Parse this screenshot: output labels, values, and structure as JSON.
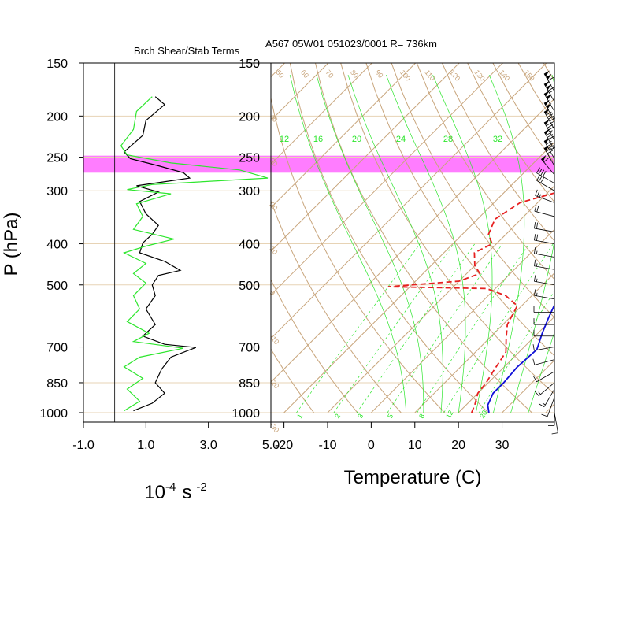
{
  "title_right": "A567 05W01 051023/0001 R= 736km",
  "title_left": "Brch Shear/Stab Terms",
  "y_axis_label": "P (hPa)",
  "pressure_ticks": [
    150,
    200,
    250,
    300,
    400,
    500,
    700,
    850,
    1000
  ],
  "highlight_pressure_range": [
    248,
    272
  ],
  "colors": {
    "brown": "#c8a57c",
    "green": "#2ee62e",
    "red": "#e62020",
    "blue": "#1010d8",
    "magenta": "#ff66ff",
    "wind": "#000000"
  },
  "chart_data": [
    {
      "type": "line",
      "title": "Brch Shear/Stab Terms",
      "xlabel": "10",
      "xlabel_sup1": "-4",
      "xlabel_unit": "s",
      "xlabel_sup2": "-2",
      "ylabel": "P (hPa)",
      "x_ticks": [
        "-1.0",
        "1.0",
        "3.0",
        "5.0"
      ],
      "xlim": [
        -1.0,
        5.0
      ],
      "ylim": [
        1000,
        150
      ],
      "series": [
        {
          "name": "shear term",
          "color": "black",
          "points": [
            [
              1.3,
              180
            ],
            [
              1.6,
              188
            ],
            [
              1.0,
              205
            ],
            [
              0.9,
              222
            ],
            [
              0.3,
              243
            ],
            [
              0.5,
              252
            ],
            [
              1.4,
              262
            ],
            [
              2.2,
              272
            ],
            [
              2.4,
              280
            ],
            [
              0.7,
              292
            ],
            [
              1.4,
              302
            ],
            [
              0.8,
              318
            ],
            [
              1.0,
              340
            ],
            [
              1.4,
              362
            ],
            [
              1.2,
              380
            ],
            [
              0.9,
              398
            ],
            [
              0.8,
              420
            ],
            [
              1.6,
              440
            ],
            [
              2.1,
              462
            ],
            [
              1.4,
              475
            ],
            [
              1.2,
              500
            ],
            [
              1.3,
              530
            ],
            [
              1.0,
              570
            ],
            [
              1.3,
              620
            ],
            [
              0.9,
              660
            ],
            [
              1.6,
              690
            ],
            [
              2.6,
              702
            ],
            [
              1.8,
              740
            ],
            [
              1.5,
              790
            ],
            [
              1.3,
              850
            ],
            [
              1.6,
              900
            ],
            [
              1.2,
              950
            ],
            [
              0.6,
              990
            ]
          ]
        },
        {
          "name": "stability term",
          "color": "green",
          "points": [
            [
              1.2,
              180
            ],
            [
              0.7,
              195
            ],
            [
              0.6,
              215
            ],
            [
              0.2,
              235
            ],
            [
              0.4,
              247
            ],
            [
              1.8,
              258
            ],
            [
              4.0,
              268
            ],
            [
              4.9,
              280
            ],
            [
              1.2,
              290
            ],
            [
              0.4,
              298
            ],
            [
              1.8,
              305
            ],
            [
              0.7,
              322
            ],
            [
              0.9,
              345
            ],
            [
              0.6,
              370
            ],
            [
              1.9,
              390
            ],
            [
              1.0,
              405
            ],
            [
              0.3,
              420
            ],
            [
              1.0,
              445
            ],
            [
              0.6,
              470
            ],
            [
              1.0,
              495
            ],
            [
              0.6,
              530
            ],
            [
              0.8,
              570
            ],
            [
              0.4,
              610
            ],
            [
              1.1,
              650
            ],
            [
              0.6,
              680
            ],
            [
              2.2,
              705
            ],
            [
              0.8,
              740
            ],
            [
              0.3,
              780
            ],
            [
              0.9,
              830
            ],
            [
              0.4,
              880
            ],
            [
              0.8,
              940
            ],
            [
              0.3,
              990
            ]
          ]
        }
      ],
      "zero_line": 0.0
    },
    {
      "type": "line",
      "title": "A567 05W01 051023/0001 R= 736km",
      "xlabel": "Temperature (C)",
      "ylabel": "P (hPa)",
      "x_ticks": [
        "-20",
        "-10",
        "0",
        "10",
        "20",
        "30"
      ],
      "xlim": [
        -23,
        42
      ],
      "ylim": [
        1000,
        150
      ],
      "isotherm_labels_top": [
        "50",
        "60",
        "70",
        "80",
        "90",
        "100",
        "110",
        "120",
        "130",
        "140",
        "150"
      ],
      "isotherm_labels_left": [
        "40",
        "30",
        "20",
        "10",
        "0",
        "-10",
        "-20",
        "-30"
      ],
      "mixing_ratio_labels_top": [
        "12",
        "16",
        "20",
        "24",
        "28",
        "32"
      ],
      "mixing_ratio_labels_bottom": [
        "1",
        "2",
        "3",
        "5",
        "8",
        "12",
        "20"
      ],
      "series": [
        {
          "name": "temperature",
          "color": "blue",
          "points": [
            [
              27,
              1000
            ],
            [
              25,
              960
            ],
            [
              23.5,
              900
            ],
            [
              23.5,
              850
            ],
            [
              23,
              780
            ],
            [
              23.5,
              710
            ],
            [
              21,
              650
            ],
            [
              19,
              600
            ],
            [
              17,
              550
            ],
            [
              15.5,
              500
            ],
            [
              13,
              450
            ],
            [
              11,
              400
            ],
            [
              8,
              350
            ],
            [
              5,
              300
            ],
            [
              3,
              270
            ],
            [
              -1,
              230
            ],
            [
              -5,
              200
            ],
            [
              -8,
              175
            ],
            [
              -10,
              165
            ]
          ]
        },
        {
          "name": "dewpoint",
          "color": "red",
          "points": [
            [
              23,
              1000
            ],
            [
              22,
              960
            ],
            [
              20,
              900
            ],
            [
              19.5,
              850
            ],
            [
              18.5,
              800
            ],
            [
              17,
              720
            ],
            [
              14,
              670
            ],
            [
              11,
              620
            ],
            [
              9,
              560
            ],
            [
              4,
              530
            ],
            [
              -2,
              510
            ],
            [
              -25,
              505
            ],
            [
              -10,
              490
            ],
            [
              -7,
              470
            ],
            [
              -10,
              450
            ],
            [
              -13,
              420
            ],
            [
              -11,
              400
            ],
            [
              -14,
              380
            ],
            [
              -16,
              350
            ],
            [
              -14,
              320
            ],
            [
              -7,
              300
            ],
            [
              -3,
              280
            ],
            [
              -4,
              260
            ],
            [
              -9,
              245
            ],
            [
              -15,
              225
            ],
            [
              -16,
              210
            ],
            [
              -17,
              195
            ],
            [
              -17,
              190
            ]
          ]
        }
      ]
    }
  ],
  "wind_barbs": [
    [
      150,
      0,
      0
    ],
    [
      175,
      330,
      110
    ],
    [
      185,
      330,
      115
    ],
    [
      195,
      330,
      100
    ],
    [
      205,
      330,
      100
    ],
    [
      215,
      330,
      95
    ],
    [
      228,
      330,
      85
    ],
    [
      240,
      330,
      80
    ],
    [
      252,
      330,
      90
    ],
    [
      262,
      330,
      70
    ],
    [
      275,
      320,
      60
    ],
    [
      288,
      300,
      40
    ],
    [
      300,
      300,
      30
    ],
    [
      320,
      290,
      25
    ],
    [
      345,
      285,
      20
    ],
    [
      375,
      280,
      20
    ],
    [
      400,
      280,
      20
    ],
    [
      430,
      280,
      15
    ],
    [
      460,
      280,
      15
    ],
    [
      500,
      280,
      15
    ],
    [
      540,
      280,
      15
    ],
    [
      580,
      270,
      10
    ],
    [
      620,
      270,
      10
    ],
    [
      660,
      270,
      10
    ],
    [
      700,
      260,
      10
    ],
    [
      750,
      255,
      10
    ],
    [
      800,
      240,
      10
    ],
    [
      850,
      230,
      15
    ],
    [
      880,
      210,
      15
    ],
    [
      920,
      200,
      10
    ],
    [
      960,
      180,
      10
    ],
    [
      1000,
      170,
      10
    ]
  ]
}
